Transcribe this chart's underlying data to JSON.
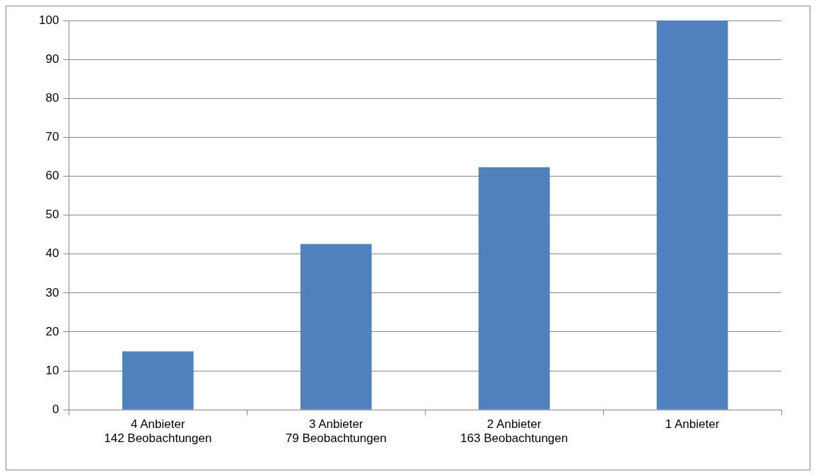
{
  "chart_data": {
    "type": "bar",
    "categories": [
      "4 Anbieter\n142 Beobachtungen",
      "3 Anbieter\n79 Beobachtungen",
      "2 Anbieter\n163 Beobachtungen",
      "1 Anbieter"
    ],
    "values": [
      15,
      42.6,
      62.3,
      100
    ],
    "color": "#4f81bd",
    "ylim": [
      0,
      100
    ],
    "yticks": [
      0,
      10,
      20,
      30,
      40,
      50,
      60,
      70,
      80,
      90,
      100
    ],
    "grid": "y",
    "legend": false
  }
}
